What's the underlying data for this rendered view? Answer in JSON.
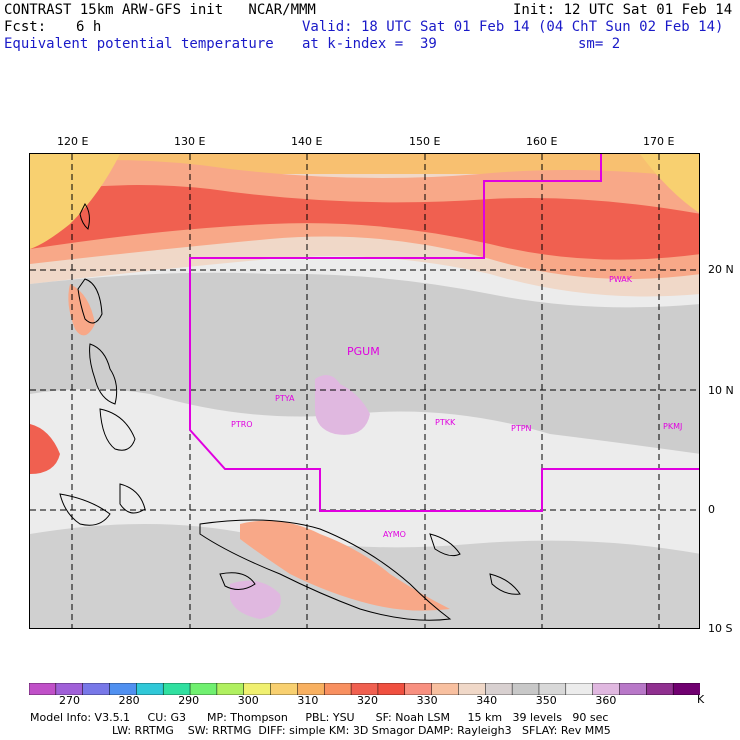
{
  "header": {
    "title": "CONTRAST 15km ARW-GFS init   NCAR/MMM",
    "init": "Init: 12 UTC Sat 01 Feb 14",
    "fcst_label": "Fcst:",
    "fcst_value": "6 h",
    "valid": "Valid: 18 UTC Sat 01 Feb 14 (04 ChT Sun 02 Feb 14)",
    "field": "Equivalent potential temperature",
    "kindex": "at k-index =  39",
    "sm": "sm= 2"
  },
  "axes": {
    "lon_ticks": [
      "120 E",
      "130 E",
      "140 E",
      "150 E",
      "160 E",
      "170 E"
    ],
    "lat_ticks": [
      "20 N",
      "10 N",
      "0",
      "10 S"
    ]
  },
  "stations": [
    {
      "id": "PGUM",
      "big": true
    },
    {
      "id": "PWAK",
      "big": false
    },
    {
      "id": "PTYA",
      "big": false
    },
    {
      "id": "PTRO",
      "big": false
    },
    {
      "id": "PTKK",
      "big": false
    },
    {
      "id": "PTPN",
      "big": false
    },
    {
      "id": "PKMJ",
      "big": false
    },
    {
      "id": "AYMO",
      "big": false
    }
  ],
  "colorbar": {
    "labels": [
      "270",
      "280",
      "290",
      "300",
      "310",
      "320",
      "330",
      "340",
      "350",
      "360"
    ],
    "unit": "K",
    "colors": [
      "#c050c8",
      "#a060d8",
      "#7878e8",
      "#5090f0",
      "#30c8d8",
      "#30e0a0",
      "#70f070",
      "#b0f060",
      "#f0f070",
      "#f8d070",
      "#f8b060",
      "#f89060",
      "#f06050",
      "#f05040",
      "#f89080",
      "#f8c0a0",
      "#f0d8c8",
      "#d8d0d0",
      "#c8c8c8",
      "#d8d8d8",
      "#ececec",
      "#e0b8e0",
      "#b878c8",
      "#903090",
      "#700070"
    ]
  },
  "model_info": {
    "line1": "Model Info: V3.5.1     CU: G3      MP: Thompson     PBL: YSU      SF: Noah LSM     15 km   39 levels   90 sec",
    "line2": "LW: RRTMG    SW: RRTMG  DIFF: simple KM: 3D Smagor DAMP: Rayleigh3   SFLAY: Rev MM5"
  },
  "colors": {
    "boundary": "#e000e0",
    "text_blue": "#1a1ac8"
  }
}
